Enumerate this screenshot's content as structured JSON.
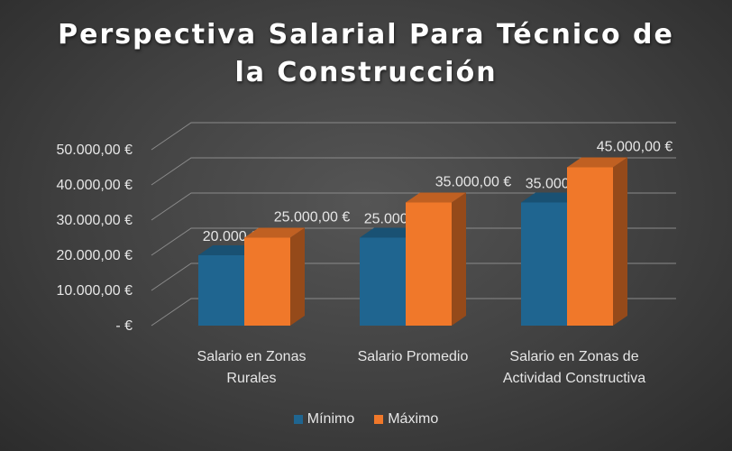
{
  "chart_data": {
    "type": "bar",
    "title_lines": [
      "Perspectiva Salarial Para Técnico de",
      "la Construcción"
    ],
    "categories": [
      [
        "Salario en Zonas",
        "Rurales"
      ],
      [
        "Salario Promedio"
      ],
      [
        "Salario en Zonas de",
        "Actividad Constructiva"
      ]
    ],
    "series": [
      {
        "name": "Mínimo",
        "color": "#1f6590",
        "values": [
          20000,
          25000,
          35000
        ]
      },
      {
        "name": "Máximo",
        "color": "#f0782a",
        "values": [
          25000,
          35000,
          45000
        ]
      }
    ],
    "data_labels": [
      [
        "20.000,00 €",
        "25.000,00 €",
        "35.000,00 €"
      ],
      [
        "25.000,00 €",
        "35.000,00 €",
        "45.000,00 €"
      ]
    ],
    "y_ticks": [
      0,
      10000,
      20000,
      30000,
      40000,
      50000
    ],
    "y_tick_labels": [
      " -  €",
      "10.000,00 €",
      "20.000,00 €",
      "30.000,00 €",
      "40.000,00 €",
      "50.000,00 €"
    ],
    "ylim": [
      0,
      50000
    ],
    "grid": true,
    "legend_position": "bottom",
    "style": "3d-clustered-column"
  }
}
